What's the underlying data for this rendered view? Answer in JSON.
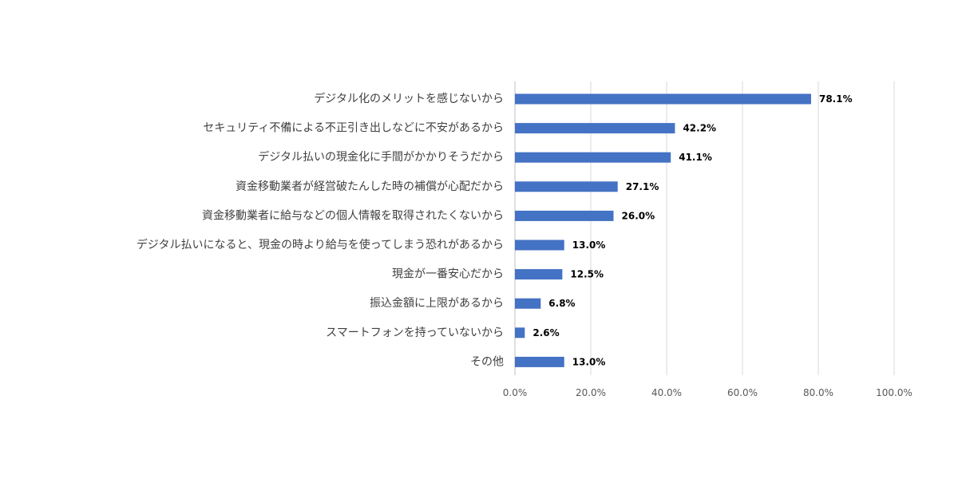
{
  "chart_data": {
    "type": "bar",
    "orientation": "horizontal",
    "categories": [
      "デジタル化のメリットを感じないから",
      "セキュリティ不備による不正引き出しなどに不安があるから",
      "デジタル払いの現金化に手間がかかりそうだから",
      "資金移動業者が経営破たんした時の補償が心配だから",
      "資金移動業者に給与などの個人情報を取得されたくないから",
      "デジタル払いになると、現金の時より給与を使ってしまう恐れがあるから",
      "現金が一番安心だから",
      "振込金額に上限があるから",
      "スマートフォンを持っていないから",
      "その他"
    ],
    "values": [
      78.1,
      42.2,
      41.1,
      27.1,
      26.0,
      13.0,
      12.5,
      6.8,
      2.6,
      13.0
    ],
    "value_labels": [
      "78.1%",
      "42.2%",
      "41.1%",
      "27.1%",
      "26.0%",
      "13.0%",
      "12.5%",
      "6.8%",
      "2.6%",
      "13.0%"
    ],
    "x_ticks": [
      0,
      20,
      40,
      60,
      80,
      100
    ],
    "x_tick_labels": [
      "0.0%",
      "20.0%",
      "40.0%",
      "60.0%",
      "80.0%",
      "100.0%"
    ],
    "xlim": [
      0,
      100
    ],
    "grid": true,
    "legend": "none",
    "title": "",
    "xlabel": "",
    "ylabel": "",
    "colors": {
      "bar": "#4472C4",
      "grid": "#d9d9d9",
      "axis": "#bfbfbf"
    }
  }
}
